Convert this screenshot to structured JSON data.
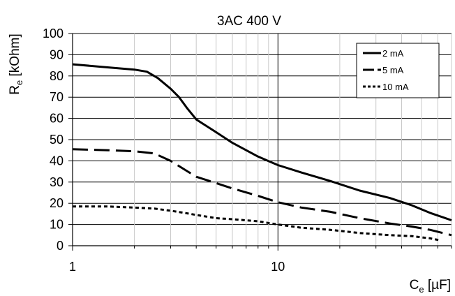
{
  "chart_data": {
    "type": "line",
    "title": "3AC 400 V",
    "xlabel": {
      "main": "C",
      "sub": "e",
      "unit": " [µF]"
    },
    "ylabel": {
      "main": "R",
      "sub": "e",
      "unit": " [kOhm]"
    },
    "xscale": "log",
    "xlim": [
      1,
      70
    ],
    "ylim": [
      0,
      100
    ],
    "xticks": [
      1,
      10
    ],
    "xtick_labels": [
      "1",
      "10"
    ],
    "yticks": [
      0,
      10,
      20,
      30,
      40,
      50,
      60,
      70,
      80,
      90,
      100
    ],
    "ytick_labels": [
      "0",
      "10",
      "20",
      "30",
      "40",
      "50",
      "60",
      "70",
      "80",
      "90",
      "100"
    ],
    "grid": "horizontal major; vertical minor (log)",
    "legend_position": "top-right",
    "series": [
      {
        "name": "2 mA",
        "style": "solid",
        "x": [
          1,
          1.5,
          2,
          2.3,
          2.6,
          3,
          3.3,
          3.6,
          4,
          5,
          6,
          8,
          10,
          13,
          18,
          25,
          35,
          45,
          55,
          70
        ],
        "y": [
          85.5,
          84,
          83,
          82,
          79,
          74,
          70,
          65,
          59.5,
          53.5,
          48.5,
          42,
          38,
          34.5,
          30.5,
          26,
          22.5,
          19,
          15.5,
          12
        ]
      },
      {
        "name": "5 mA",
        "style": "dashed",
        "x": [
          1,
          1.5,
          2,
          2.5,
          3,
          3.5,
          4,
          5,
          6,
          8,
          10,
          13,
          18,
          25,
          35,
          45,
          55,
          70
        ],
        "y": [
          45.5,
          45,
          44.5,
          43.5,
          40,
          36,
          32.5,
          29.5,
          27,
          23.5,
          20.5,
          18,
          16,
          13,
          10.5,
          9,
          7.5,
          5
        ]
      },
      {
        "name": "10 mA",
        "style": "dotted",
        "x": [
          1,
          1.5,
          2,
          2.5,
          3,
          3.5,
          4,
          5,
          6,
          8,
          10,
          13,
          18,
          25,
          35,
          45,
          55,
          62
        ],
        "y": [
          18.5,
          18.5,
          18,
          17.5,
          16.5,
          15.5,
          14.5,
          13,
          12.5,
          11.5,
          10,
          8.5,
          7.5,
          6,
          5,
          4.5,
          3.5,
          2.5
        ]
      }
    ]
  }
}
